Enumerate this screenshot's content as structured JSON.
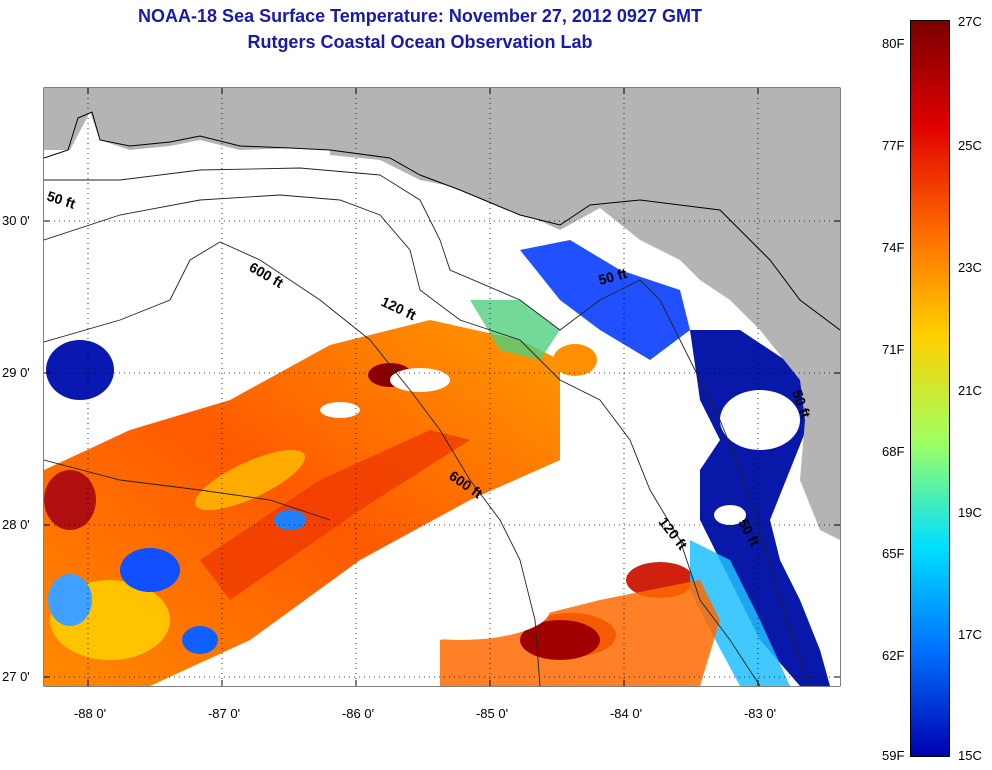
{
  "title": "NOAA-18 Sea Surface Temperature:  November 27, 2012 0927 GMT",
  "subtitle": "Rutgers Coastal Ocean Observation Lab",
  "axes": {
    "lat_ticks": [
      "30 0'",
      "29 0'",
      "28 0'",
      "27 0'"
    ],
    "lon_ticks": [
      "-88 0'",
      "-87 0'",
      "-86 0'",
      "-85 0'",
      "-84 0'",
      "-83 0'"
    ]
  },
  "contours": [
    "50 ft",
    "600 ft",
    "120 ft",
    "50 ft",
    "600 ft",
    "120 ft",
    "50 ft",
    "50 ft"
  ],
  "colorbar": {
    "fahrenheit": [
      "80F",
      "77F",
      "74F",
      "71F",
      "68F",
      "65F",
      "62F",
      "59F"
    ],
    "celsius": [
      "27C",
      "25C",
      "23C",
      "21C",
      "19C",
      "17C",
      "15C"
    ],
    "colors": [
      "#7a0000",
      "#e00000",
      "#ff6a00",
      "#ffd000",
      "#a0ff60",
      "#00e0ff",
      "#0070ff",
      "#0000b0"
    ]
  },
  "colors": {
    "land": "#b4b4b4",
    "cloud": "#ffffff",
    "title": "#1a1aa8"
  }
}
